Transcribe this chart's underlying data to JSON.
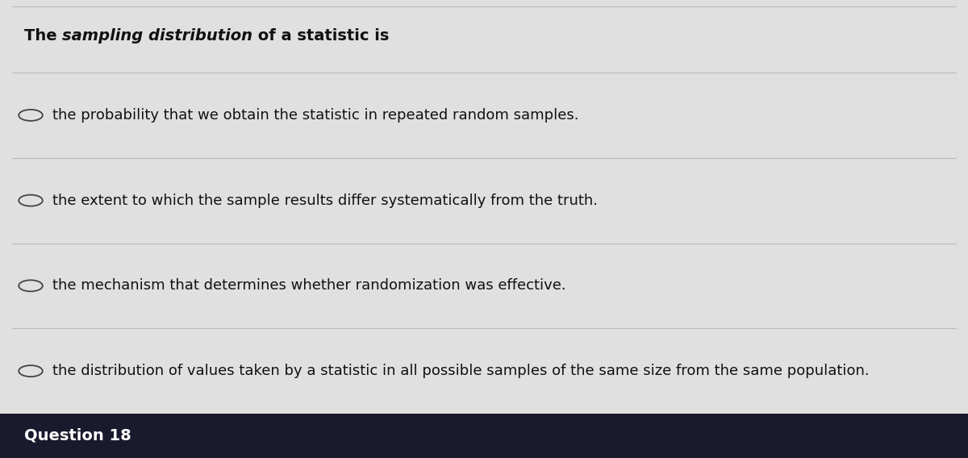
{
  "bg_color": "#cccccc",
  "content_bg": "#e0e0e0",
  "bottom_bar_color": "#1a1a2e",
  "question_prefix": "The ",
  "question_italic": "sampling distribution",
  "question_suffix": " of a statistic is",
  "options": [
    "the probability that we obtain the statistic in repeated random samples.",
    "the extent to which the sample results differ systematically from the truth.",
    "the mechanism that determines whether randomization was effective.",
    "the distribution of values taken by a statistic in all possible samples of the same size from the same population."
  ],
  "footer_text": "Question 18",
  "text_color": "#111111",
  "footer_text_color": "#ffffff",
  "divider_color": "#bbbbbb",
  "circle_color": "#444444",
  "question_fontsize": 14,
  "option_fontsize": 13,
  "footer_fontsize": 14
}
